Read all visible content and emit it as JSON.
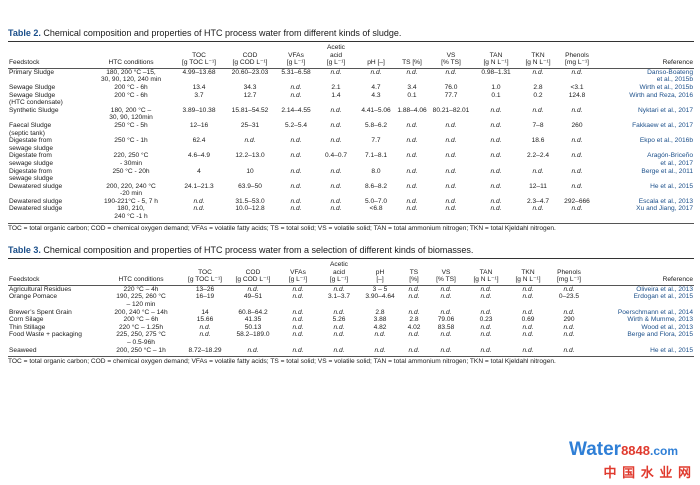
{
  "table2": {
    "label": "Table 2.",
    "title": "Chemical composition and properties of HTC process water from different kinds of sludge.",
    "headers": [
      [
        "Feedstock"
      ],
      [
        "HTC conditions"
      ],
      [
        "TOC",
        "[g TOC L⁻¹]"
      ],
      [
        "COD",
        "[g COD L⁻¹]"
      ],
      [
        "VFAs",
        "[g L⁻¹]"
      ],
      [
        "Acetic",
        "acid",
        "[g L⁻¹]"
      ],
      [
        "pH [–]"
      ],
      [
        "TS [%]"
      ],
      [
        "VS",
        "[% TS]"
      ],
      [
        "TAN",
        "[g N L⁻¹]"
      ],
      [
        "TKN",
        "[g N L⁻¹]"
      ],
      [
        "Phenols",
        "[mg L⁻¹]"
      ],
      [
        "Reference"
      ]
    ],
    "rows": [
      [
        [
          "Primary Sludge"
        ],
        [
          "180, 200 °C –15,",
          "30, 90, 120, 240 min"
        ],
        [
          "4.99–13.68"
        ],
        [
          "20.60–23.03"
        ],
        [
          "5.31–6.58"
        ],
        [
          "n.d."
        ],
        [
          "n.d."
        ],
        [
          "n.d."
        ],
        [
          "n.d."
        ],
        [
          "0.98–1.31"
        ],
        [
          "n.d."
        ],
        [
          "n.d."
        ],
        [
          "Danso-Boateng",
          "et al., 2015b"
        ]
      ],
      [
        [
          "Sewage Sludge"
        ],
        [
          "200 °C - 6h"
        ],
        [
          "13.4"
        ],
        [
          "34.3"
        ],
        [
          "n.d."
        ],
        [
          "2.1"
        ],
        [
          "4.7"
        ],
        [
          "3.4"
        ],
        [
          "76.0"
        ],
        [
          "1.0"
        ],
        [
          "2.8"
        ],
        [
          "<3.1"
        ],
        [
          "Wirth et al., 2015b"
        ]
      ],
      [
        [
          "Sewage Sludge",
          "(HTC condensate)"
        ],
        [
          "200 °C - 6h"
        ],
        [
          "3.7"
        ],
        [
          "12.7"
        ],
        [
          "n.d."
        ],
        [
          "1.4"
        ],
        [
          "4.3"
        ],
        [
          "0.1"
        ],
        [
          "77.7"
        ],
        [
          "0.1"
        ],
        [
          "0.2"
        ],
        [
          "124.8"
        ],
        [
          "Wirth and Reza, 2016"
        ]
      ],
      [
        [
          "Synthetic Sludge"
        ],
        [
          "180, 200 °C –",
          "30, 90, 120min"
        ],
        [
          "3.89–10.38"
        ],
        [
          "15.81–54.52"
        ],
        [
          "2.14–4.55"
        ],
        [
          "n.d."
        ],
        [
          "4.41–5.06"
        ],
        [
          "1.88–4.06"
        ],
        [
          "80.21–82.01"
        ],
        [
          "n.d."
        ],
        [
          "n.d."
        ],
        [
          "n.d."
        ],
        [
          "Nyktari et al., 2017"
        ]
      ],
      [
        [
          "Faecal Sludge",
          "(septic tank)"
        ],
        [
          "250 °C - 5h"
        ],
        [
          "12–16"
        ],
        [
          "25–31"
        ],
        [
          "5.2–5.4"
        ],
        [
          "n.d."
        ],
        [
          "5.8–6.2"
        ],
        [
          "n.d."
        ],
        [
          "n.d."
        ],
        [
          "n.d."
        ],
        [
          "7–8"
        ],
        [
          "260"
        ],
        [
          "Fakkaew et al., 2017"
        ]
      ],
      [
        [
          "Digestate from",
          "sewage sludge"
        ],
        [
          "250 °C - 1h"
        ],
        [
          "62.4"
        ],
        [
          "n.d."
        ],
        [
          "n.d."
        ],
        [
          "n.d."
        ],
        [
          "7.7"
        ],
        [
          "n.d."
        ],
        [
          "n.d."
        ],
        [
          "n.d."
        ],
        [
          "18.6"
        ],
        [
          "n.d."
        ],
        [
          "Ekpo et al., 2016b"
        ]
      ],
      [
        [
          "Digestate from",
          "sewage sludge"
        ],
        [
          "220, 250 °C",
          "- 30min"
        ],
        [
          "4.6–4.9"
        ],
        [
          "12.2–13.0"
        ],
        [
          "n.d."
        ],
        [
          "0.4–0.7"
        ],
        [
          "7.1–8.1"
        ],
        [
          "n.d."
        ],
        [
          "n.d."
        ],
        [
          "n.d."
        ],
        [
          "2.2–2.4"
        ],
        [
          "n.d."
        ],
        [
          "Aragón-Briceño",
          "et al., 2017"
        ]
      ],
      [
        [
          "Digestate from",
          "sewage sludge"
        ],
        [
          "250 °C - 20h"
        ],
        [
          "4"
        ],
        [
          "10"
        ],
        [
          "n.d."
        ],
        [
          "n.d."
        ],
        [
          "8.0"
        ],
        [
          "n.d."
        ],
        [
          "n.d."
        ],
        [
          "n.d."
        ],
        [
          "n.d."
        ],
        [
          "n.d."
        ],
        [
          "Berge et al., 2011"
        ]
      ],
      [
        [
          "Dewatered sludge"
        ],
        [
          "200, 220, 240 °C",
          "-20 min"
        ],
        [
          "24.1–21.3"
        ],
        [
          "63.9–50"
        ],
        [
          "n.d."
        ],
        [
          "n.d."
        ],
        [
          "8.6–8.2"
        ],
        [
          "n.d."
        ],
        [
          "n.d."
        ],
        [
          "n.d."
        ],
        [
          "12–11"
        ],
        [
          "n.d."
        ],
        [
          "He et al., 2015"
        ]
      ],
      [
        [
          "Dewatered sludge"
        ],
        [
          "190-221°C - 5, 7 h"
        ],
        [
          "n.d."
        ],
        [
          "31.5–53.0"
        ],
        [
          "n.d."
        ],
        [
          "n.d."
        ],
        [
          "5.0–7.0"
        ],
        [
          "n.d."
        ],
        [
          "n.d."
        ],
        [
          "n.d."
        ],
        [
          "2.3–4.7"
        ],
        [
          "292–666"
        ],
        [
          "Escala et al., 2013"
        ]
      ],
      [
        [
          "Dewatered sludge"
        ],
        [
          "180, 210,",
          "240 °C -1 h"
        ],
        [
          "n.d."
        ],
        [
          "10.0–12.8"
        ],
        [
          "n.d."
        ],
        [
          "n.d."
        ],
        [
          "<6.8"
        ],
        [
          "n.d."
        ],
        [
          "n.d."
        ],
        [
          "n.d."
        ],
        [
          "n.d."
        ],
        [
          "n.d."
        ],
        [
          "Xu and Jiang, 2017"
        ]
      ]
    ],
    "footnote": "TOC = total organic carbon; COD = chemical oxygen demand; VFAs = volatile fatty acids; TS = total solid; VS = volatile solid; TAN = total ammonium nitrogen; TKN = total Kjeldahl nitrogen."
  },
  "table3": {
    "label": "Table 3.",
    "title": "Chemical composition and properties of HTC process water from a selection of different kinds of biomasses.",
    "headers": [
      [
        "Feedstock"
      ],
      [
        "HTC conditions"
      ],
      [
        "TOC",
        "[g TOC L⁻¹]"
      ],
      [
        "COD",
        "[g COD L⁻¹]"
      ],
      [
        "VFAs",
        "[g L⁻¹]"
      ],
      [
        "Acetic",
        "acid",
        "[g L⁻¹]"
      ],
      [
        "pH",
        "[–]"
      ],
      [
        "TS",
        "[%]"
      ],
      [
        "VS",
        "[% TS]"
      ],
      [
        "TAN",
        "[g N L⁻¹]"
      ],
      [
        "TKN",
        "[g N L⁻¹]"
      ],
      [
        "Phenols",
        "[mg L⁻¹]"
      ],
      [
        "Reference"
      ]
    ],
    "rows": [
      [
        [
          "Agricultural Residues"
        ],
        [
          "220 °C – 4h"
        ],
        [
          "13–26"
        ],
        [
          "n.d."
        ],
        [
          "n.d."
        ],
        [
          "n.d."
        ],
        [
          "3 – 5"
        ],
        [
          "n.d."
        ],
        [
          "n.d."
        ],
        [
          "n.d."
        ],
        [
          "n.d."
        ],
        [
          "n.d."
        ],
        [
          "Oliveira et al., 2013"
        ]
      ],
      [
        [
          "Orange Pomace"
        ],
        [
          "190, 225, 260 °C",
          "– 120 min"
        ],
        [
          "16–19"
        ],
        [
          "49–51"
        ],
        [
          "n.d."
        ],
        [
          "3.1–3.7"
        ],
        [
          "3.90–4.64"
        ],
        [
          "n.d."
        ],
        [
          "n.d."
        ],
        [
          "n.d."
        ],
        [
          "n.d."
        ],
        [
          "0–23.5"
        ],
        [
          "Erdogan et al., 2015"
        ]
      ],
      [
        [
          "Brewer’s Spent Grain"
        ],
        [
          "200, 240 °C – 14h"
        ],
        [
          "14"
        ],
        [
          "60.8–64.2"
        ],
        [
          "n.d."
        ],
        [
          "n.d."
        ],
        [
          "2.8"
        ],
        [
          "n.d."
        ],
        [
          "n.d."
        ],
        [
          "n.d."
        ],
        [
          "n.d."
        ],
        [
          "n.d."
        ],
        [
          "Poerschmann et al., 2014"
        ]
      ],
      [
        [
          "Corn Silage"
        ],
        [
          "200 °C – 6h"
        ],
        [
          "15.66"
        ],
        [
          "41.35"
        ],
        [
          "n.d."
        ],
        [
          "5.26"
        ],
        [
          "3.88"
        ],
        [
          "2.8"
        ],
        [
          "79.06"
        ],
        [
          "0.23"
        ],
        [
          "0.69"
        ],
        [
          "290"
        ],
        [
          "Wirth & Mumme, 2013"
        ]
      ],
      [
        [
          "Thin Stillage"
        ],
        [
          "220 °C – 1.25h"
        ],
        [
          "n.d."
        ],
        [
          "50.13"
        ],
        [
          "n.d."
        ],
        [
          "n.d."
        ],
        [
          "4.82"
        ],
        [
          "4.02"
        ],
        [
          "83.58"
        ],
        [
          "n.d."
        ],
        [
          "n.d."
        ],
        [
          "n.d."
        ],
        [
          "Wood et al., 2013"
        ]
      ],
      [
        [
          "Food Waste + packaging"
        ],
        [
          "225, 250, 275 °C",
          "– 0.5-96h"
        ],
        [
          "n.d."
        ],
        [
          "58.2–189.0"
        ],
        [
          "n.d."
        ],
        [
          "n.d."
        ],
        [
          "n.d."
        ],
        [
          "n.d."
        ],
        [
          "n.d."
        ],
        [
          "n.d."
        ],
        [
          "n.d."
        ],
        [
          "n.d."
        ],
        [
          "Berge and Flora, 2015"
        ]
      ],
      [
        [
          "Seaweed"
        ],
        [
          "200, 250 °C – 1h"
        ],
        [
          "8.72–18.29"
        ],
        [
          "n.d."
        ],
        [
          "n.d."
        ],
        [
          "n.d."
        ],
        [
          "n.d."
        ],
        [
          "n.d."
        ],
        [
          "n.d."
        ],
        [
          "n.d."
        ],
        [
          "n.d."
        ],
        [
          "n.d."
        ],
        [
          "He et al., 2015"
        ]
      ]
    ],
    "footnote": "TOC = total organic carbon; COD = chemical oxygen demand; VFAs = volatile fatty acids; TS = total solid; VS = volatile solid; TAN = total ammonium nitrogen; TKN = total Kjeldahl nitrogen."
  },
  "watermark": {
    "brand": "Water",
    "number": "8848",
    "domain": ".com",
    "cn": "中 国 水 业 网"
  }
}
